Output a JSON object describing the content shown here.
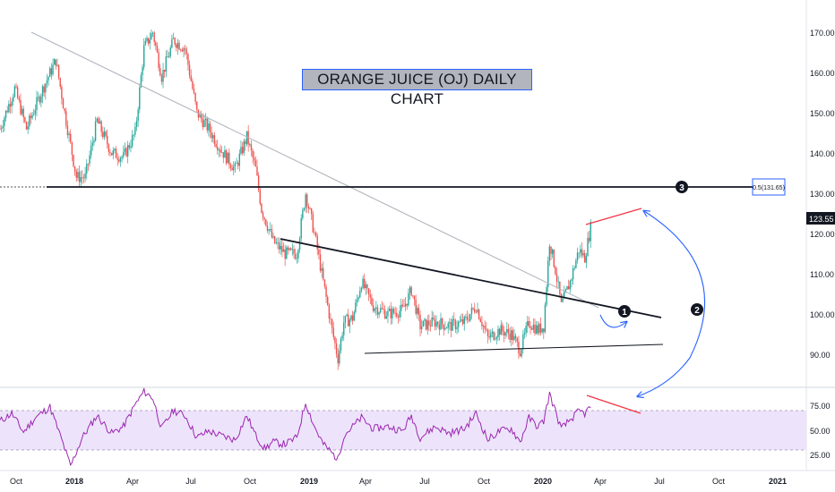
{
  "chart_data": [
    {
      "type": "candlestick",
      "title": "ORANGE JUICE (OJ) DAILY CHART",
      "x_tick_labels": [
        "Oct",
        "2018",
        "Apr",
        "Jul",
        "Oct",
        "2019",
        "Apr",
        "Jul",
        "Oct",
        "2020",
        "Apr",
        "Jul",
        "Oct",
        "2021"
      ],
      "y_tick_labels": [
        "170.00",
        "160.00",
        "150.00",
        "140.00",
        "130.00",
        "120.00",
        "110.00",
        "100.00",
        "90.00"
      ],
      "ylim": [
        84,
        180
      ],
      "last_price": "123.55",
      "fib_level": {
        "label": "0.5(131.65)",
        "value": 131.65
      },
      "annotations": [
        "1",
        "2",
        "3"
      ],
      "price_path": [
        {
          "t": 0,
          "p": 148
        },
        {
          "t": 5,
          "p": 158
        },
        {
          "t": 9,
          "p": 148
        },
        {
          "t": 14,
          "p": 157
        },
        {
          "t": 19,
          "p": 165
        },
        {
          "t": 22,
          "p": 152
        },
        {
          "t": 26,
          "p": 136
        },
        {
          "t": 29,
          "p": 136
        },
        {
          "t": 33,
          "p": 150
        },
        {
          "t": 38,
          "p": 142
        },
        {
          "t": 42,
          "p": 141
        },
        {
          "t": 46,
          "p": 147
        },
        {
          "t": 49,
          "p": 168
        },
        {
          "t": 52,
          "p": 172
        },
        {
          "t": 55,
          "p": 161
        },
        {
          "t": 59,
          "p": 170
        },
        {
          "t": 63,
          "p": 168
        },
        {
          "t": 67,
          "p": 152
        },
        {
          "t": 71,
          "p": 148
        },
        {
          "t": 75,
          "p": 143
        },
        {
          "t": 80,
          "p": 138
        },
        {
          "t": 84,
          "p": 146
        },
        {
          "t": 87,
          "p": 138
        },
        {
          "t": 89,
          "p": 128
        },
        {
          "t": 93,
          "p": 120
        },
        {
          "t": 97,
          "p": 117
        },
        {
          "t": 101,
          "p": 117
        },
        {
          "t": 104,
          "p": 132
        },
        {
          "t": 107,
          "p": 122
        },
        {
          "t": 110,
          "p": 110
        },
        {
          "t": 113,
          "p": 98
        },
        {
          "t": 115,
          "p": 91
        },
        {
          "t": 117,
          "p": 100
        },
        {
          "t": 120,
          "p": 101
        },
        {
          "t": 123,
          "p": 110
        },
        {
          "t": 127,
          "p": 104
        },
        {
          "t": 132,
          "p": 102
        },
        {
          "t": 137,
          "p": 103
        },
        {
          "t": 140,
          "p": 108
        },
        {
          "t": 143,
          "p": 99
        },
        {
          "t": 148,
          "p": 100
        },
        {
          "t": 153,
          "p": 99
        },
        {
          "t": 158,
          "p": 100
        },
        {
          "t": 162,
          "p": 104
        },
        {
          "t": 166,
          "p": 96
        },
        {
          "t": 170,
          "p": 98
        },
        {
          "t": 174,
          "p": 97
        },
        {
          "t": 177,
          "p": 93
        },
        {
          "t": 180,
          "p": 100
        },
        {
          "t": 183,
          "p": 98
        },
        {
          "t": 185,
          "p": 99
        },
        {
          "t": 187,
          "p": 120
        },
        {
          "t": 189,
          "p": 113
        },
        {
          "t": 191,
          "p": 104
        },
        {
          "t": 194,
          "p": 110
        },
        {
          "t": 197,
          "p": 118
        },
        {
          "t": 199,
          "p": 116
        },
        {
          "t": 201,
          "p": 123.5
        }
      ]
    },
    {
      "type": "line",
      "title": "",
      "y_tick_labels": [
        "75.00",
        "50.00",
        "25.00"
      ],
      "ylim": [
        10,
        85
      ],
      "band": [
        30,
        70
      ],
      "rsi_path": [
        {
          "t": 0,
          "p": 55
        },
        {
          "t": 4,
          "p": 62
        },
        {
          "t": 8,
          "p": 45
        },
        {
          "t": 12,
          "p": 58
        },
        {
          "t": 17,
          "p": 68
        },
        {
          "t": 21,
          "p": 38
        },
        {
          "t": 24,
          "p": 14
        },
        {
          "t": 28,
          "p": 40
        },
        {
          "t": 33,
          "p": 60
        },
        {
          "t": 38,
          "p": 44
        },
        {
          "t": 42,
          "p": 50
        },
        {
          "t": 46,
          "p": 70
        },
        {
          "t": 49,
          "p": 82
        },
        {
          "t": 52,
          "p": 76
        },
        {
          "t": 55,
          "p": 48
        },
        {
          "t": 59,
          "p": 65
        },
        {
          "t": 63,
          "p": 60
        },
        {
          "t": 67,
          "p": 40
        },
        {
          "t": 71,
          "p": 46
        },
        {
          "t": 75,
          "p": 42
        },
        {
          "t": 80,
          "p": 38
        },
        {
          "t": 84,
          "p": 60
        },
        {
          "t": 87,
          "p": 42
        },
        {
          "t": 90,
          "p": 30
        },
        {
          "t": 93,
          "p": 36
        },
        {
          "t": 97,
          "p": 34
        },
        {
          "t": 101,
          "p": 40
        },
        {
          "t": 104,
          "p": 72
        },
        {
          "t": 107,
          "p": 50
        },
        {
          "t": 110,
          "p": 34
        },
        {
          "t": 113,
          "p": 26
        },
        {
          "t": 115,
          "p": 20
        },
        {
          "t": 117,
          "p": 42
        },
        {
          "t": 120,
          "p": 50
        },
        {
          "t": 123,
          "p": 58
        },
        {
          "t": 127,
          "p": 48
        },
        {
          "t": 132,
          "p": 50
        },
        {
          "t": 137,
          "p": 46
        },
        {
          "t": 140,
          "p": 60
        },
        {
          "t": 143,
          "p": 40
        },
        {
          "t": 148,
          "p": 50
        },
        {
          "t": 153,
          "p": 44
        },
        {
          "t": 158,
          "p": 48
        },
        {
          "t": 162,
          "p": 62
        },
        {
          "t": 166,
          "p": 38
        },
        {
          "t": 170,
          "p": 46
        },
        {
          "t": 174,
          "p": 48
        },
        {
          "t": 177,
          "p": 36
        },
        {
          "t": 180,
          "p": 58
        },
        {
          "t": 183,
          "p": 50
        },
        {
          "t": 185,
          "p": 55
        },
        {
          "t": 187,
          "p": 80
        },
        {
          "t": 189,
          "p": 64
        },
        {
          "t": 191,
          "p": 48
        },
        {
          "t": 194,
          "p": 56
        },
        {
          "t": 197,
          "p": 64
        },
        {
          "t": 199,
          "p": 62
        },
        {
          "t": 201,
          "p": 68
        }
      ]
    }
  ],
  "colors": {
    "up": "#26a69a",
    "down": "#ef5350",
    "rsi": "#9c27b0",
    "band_fill": "#ede4fb",
    "trend": "#131722",
    "divergence": "#f23645",
    "arrow": "#2962ff",
    "last_price_bg": "#131722",
    "fib_border": "#2962ff"
  }
}
